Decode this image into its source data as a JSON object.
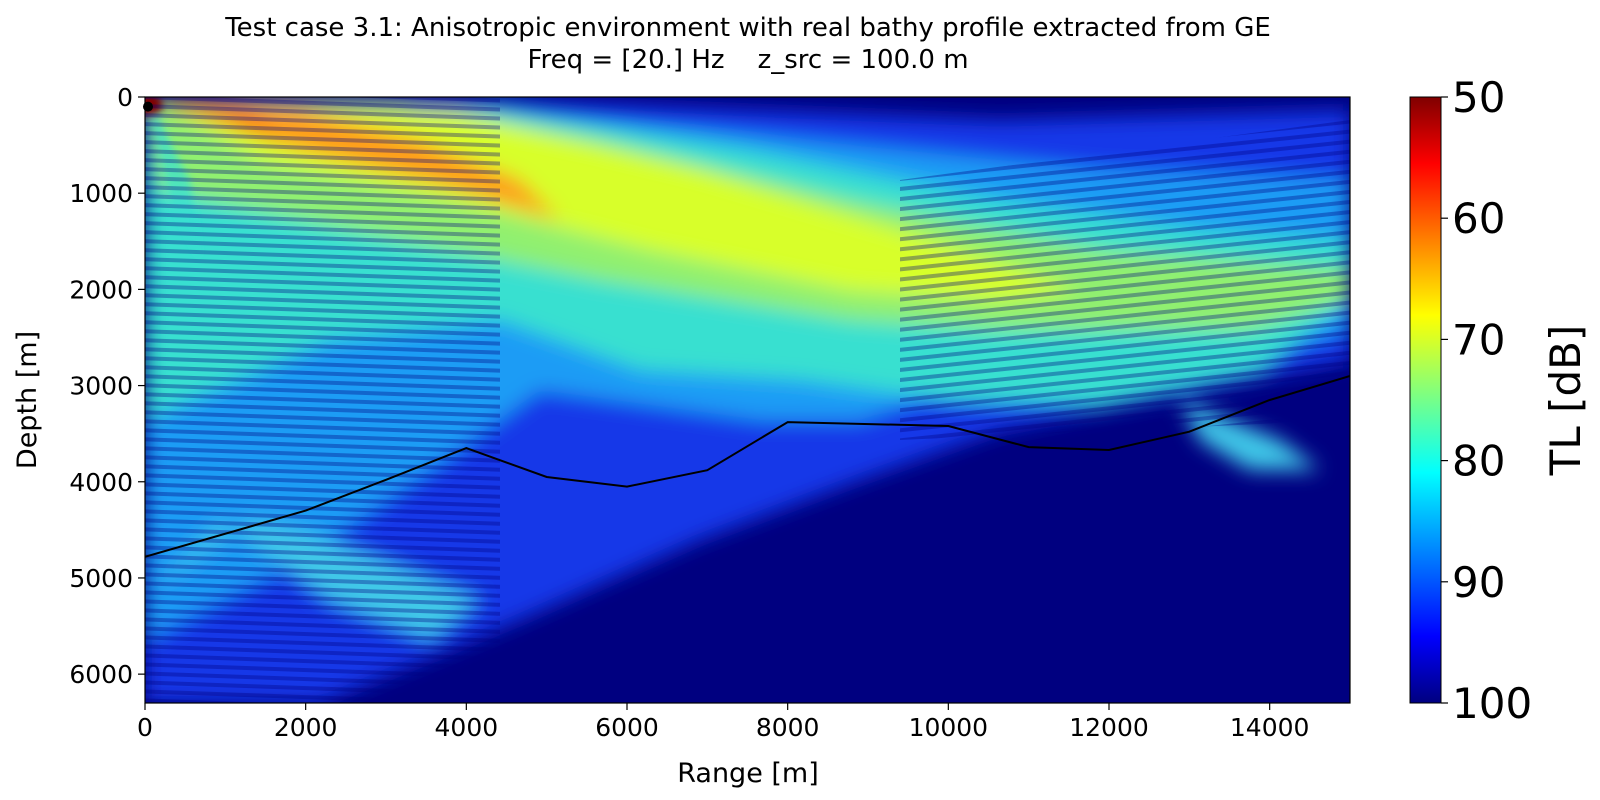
{
  "chart_data": {
    "type": "heatmap",
    "title": "Test case 3.1: Anisotropic environment with real bathy profile extracted from GE",
    "subtitle": "Freq = [20.] Hz    z_src = 100.0 m",
    "xlabel": "Range [m]",
    "ylabel": "Depth [m]",
    "xlim": [
      0,
      15000
    ],
    "ylim": [
      6300,
      0
    ],
    "xticks": [
      0,
      2000,
      4000,
      6000,
      8000,
      10000,
      12000,
      14000
    ],
    "yticks": [
      0,
      1000,
      2000,
      3000,
      4000,
      5000,
      6000
    ],
    "colorbar": {
      "label": "TL [dB]",
      "range": [
        50,
        100
      ],
      "ticks": [
        50,
        60,
        70,
        80,
        90,
        100
      ],
      "colormap": "jet",
      "reversed": true
    },
    "source": {
      "range": 0,
      "depth": 100
    },
    "series": [
      {
        "type": "line",
        "color": "#000000",
        "x": [
          0,
          2000,
          3000,
          4000,
          5000,
          6000,
          7000,
          8000,
          10000,
          11000,
          12000,
          13000,
          14000,
          15000
        ],
        "y": [
          4780,
          4300,
          3980,
          3650,
          3950,
          4050,
          3880,
          3380,
          3420,
          3640,
          3670,
          3480,
          3150,
          2900
        ]
      }
    ]
  }
}
